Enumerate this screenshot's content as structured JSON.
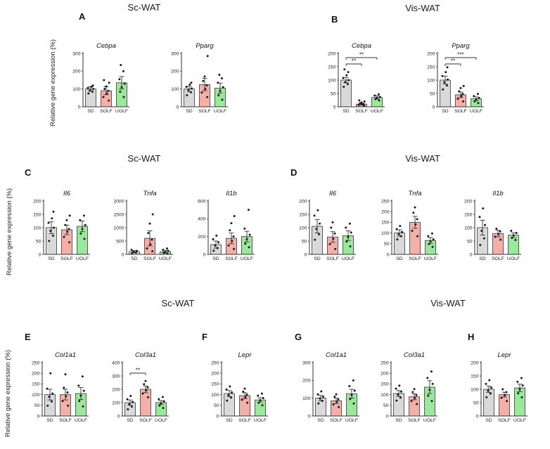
{
  "figure": {
    "y_axis_label": "Relative gene expression (%)",
    "section_titles": [
      {
        "id": "row0-sc",
        "text": "Sc-WAT"
      },
      {
        "id": "row0-vis",
        "text": "Vis-WAT"
      },
      {
        "id": "row1-sc",
        "text": "Sc-WAT"
      },
      {
        "id": "row1-vis",
        "text": "Vis-WAT"
      },
      {
        "id": "row2-sc",
        "text": "Sc-WAT"
      },
      {
        "id": "row2-vis",
        "text": "Vis-WAT"
      }
    ],
    "panel_letters": [
      "A",
      "B",
      "C",
      "D",
      "E",
      "F",
      "G",
      "H"
    ]
  },
  "style": {
    "bar_colors": [
      "#d9d9d9",
      "#f5afa9",
      "#9be79b"
    ],
    "bar_border": "#4a4a4a",
    "axis_color": "#333333",
    "dot_color": "#1a1a1a",
    "text_color": "#222222"
  },
  "chart_data": [
    {
      "id": "A_Cebpa",
      "panel": "A",
      "tissue": "Sc-WAT",
      "type": "bar",
      "title": "Cebpa",
      "categories": [
        "SD",
        "SOLF",
        "UOLF"
      ],
      "values": [
        100,
        90,
        135
      ],
      "errors": [
        12,
        22,
        35
      ],
      "points": [
        [
          75,
          85,
          92,
          100,
          106,
          112,
          120
        ],
        [
          35,
          55,
          75,
          90,
          100,
          115,
          135,
          150
        ],
        [
          55,
          85,
          110,
          130,
          155,
          200,
          235
        ]
      ],
      "ylim": [
        0,
        300
      ],
      "yticks": [
        0,
        100,
        200,
        300
      ],
      "sig": []
    },
    {
      "id": "A_Pparg",
      "panel": "A",
      "tissue": "Sc-WAT",
      "type": "bar",
      "title": "Pparg",
      "categories": [
        "SD",
        "SOLF",
        "UOLF"
      ],
      "values": [
        100,
        125,
        105
      ],
      "errors": [
        15,
        35,
        28
      ],
      "points": [
        [
          65,
          82,
          95,
          103,
          112,
          125,
          135
        ],
        [
          55,
          80,
          100,
          120,
          145,
          170,
          285
        ],
        [
          40,
          65,
          90,
          110,
          135,
          160,
          180
        ]
      ],
      "ylim": [
        0,
        300
      ],
      "yticks": [
        0,
        100,
        200,
        300
      ],
      "sig": []
    },
    {
      "id": "B_Cebpa",
      "panel": "B",
      "tissue": "Vis-WAT",
      "type": "bar",
      "title": "Cebpa",
      "categories": [
        "SD",
        "SOLF",
        "UOLF"
      ],
      "values": [
        100,
        10,
        35
      ],
      "errors": [
        10,
        3,
        6
      ],
      "points": [
        [
          75,
          85,
          92,
          100,
          108,
          118,
          130,
          140
        ],
        [
          4,
          7,
          9,
          11,
          13,
          16,
          20,
          24
        ],
        [
          24,
          29,
          33,
          37,
          42,
          47
        ]
      ],
      "ylim": [
        0,
        200
      ],
      "yticks": [
        0,
        50,
        100,
        150,
        200
      ],
      "sig": [
        {
          "a": 0,
          "b": 1,
          "label": "**",
          "level": 0
        },
        {
          "a": 0,
          "b": 2,
          "label": "**",
          "level": 1
        }
      ]
    },
    {
      "id": "B_Pparg",
      "panel": "B",
      "tissue": "Vis-WAT",
      "type": "bar",
      "title": "Pparg",
      "categories": [
        "SD",
        "SOLF",
        "UOLF"
      ],
      "values": [
        100,
        45,
        30
      ],
      "errors": [
        15,
        10,
        7
      ],
      "points": [
        [
          65,
          80,
          92,
          102,
          115,
          130,
          148
        ],
        [
          20,
          30,
          40,
          48,
          58,
          70,
          78
        ],
        [
          14,
          20,
          27,
          33,
          40,
          48
        ]
      ],
      "ylim": [
        0,
        200
      ],
      "yticks": [
        0,
        50,
        100,
        150,
        200
      ],
      "sig": [
        {
          "a": 0,
          "b": 1,
          "label": "**",
          "level": 0
        },
        {
          "a": 0,
          "b": 2,
          "label": "***",
          "level": 1
        }
      ]
    },
    {
      "id": "C_Il6",
      "panel": "C",
      "tissue": "Sc-WAT",
      "type": "bar",
      "title": "Il6",
      "categories": [
        "SD",
        "SOLF",
        "UOLF"
      ],
      "values": [
        100,
        92,
        105
      ],
      "errors": [
        22,
        18,
        20
      ],
      "points": [
        [
          50,
          70,
          88,
          100,
          118,
          135,
          160
        ],
        [
          45,
          65,
          85,
          95,
          110,
          128,
          145
        ],
        [
          58,
          78,
          95,
          110,
          128,
          145
        ]
      ],
      "ylim": [
        0,
        200
      ],
      "yticks": [
        0,
        50,
        100,
        150,
        200
      ],
      "sig": []
    },
    {
      "id": "C_Tnfa",
      "panel": "C",
      "tissue": "Sc-WAT",
      "type": "bar",
      "title": "Tnfa",
      "categories": [
        "SD",
        "SOLF",
        "UOLF"
      ],
      "values": [
        100,
        600,
        100
      ],
      "errors": [
        40,
        280,
        50
      ],
      "points": [
        [
          40,
          70,
          100,
          130,
          170
        ],
        [
          120,
          220,
          380,
          550,
          800,
          1150,
          1500
        ],
        [
          30,
          60,
          90,
          130,
          170,
          220
        ]
      ],
      "ylim": [
        0,
        2000
      ],
      "yticks": [
        0,
        500,
        1000,
        1500,
        2000
      ],
      "sig": []
    },
    {
      "id": "C_Il1b",
      "panel": "C",
      "tissue": "Sc-WAT",
      "type": "bar",
      "title": "Il1b",
      "categories": [
        "SD",
        "SOLF",
        "UOLF"
      ],
      "values": [
        110,
        180,
        200
      ],
      "errors": [
        40,
        60,
        60
      ],
      "points": [
        [
          40,
          70,
          100,
          135,
          170,
          210
        ],
        [
          60,
          100,
          150,
          200,
          270,
          350,
          430
        ],
        [
          80,
          120,
          170,
          220,
          290,
          500
        ]
      ],
      "ylim": [
        0,
        600
      ],
      "yticks": [
        0,
        200,
        400,
        600
      ],
      "sig": []
    },
    {
      "id": "D_Il6",
      "panel": "D",
      "tissue": "Vis-WAT",
      "type": "bar",
      "title": "Il6",
      "categories": [
        "SD",
        "SOLF",
        "UOLF"
      ],
      "values": [
        105,
        65,
        70
      ],
      "errors": [
        25,
        20,
        18
      ],
      "points": [
        [
          55,
          75,
          95,
          115,
          145,
          165
        ],
        [
          20,
          38,
          58,
          78,
          100,
          120
        ],
        [
          30,
          48,
          65,
          82,
          100,
          115
        ]
      ],
      "ylim": [
        0,
        200
      ],
      "yticks": [
        0,
        50,
        100,
        150,
        200
      ],
      "sig": []
    },
    {
      "id": "D_Tnfa",
      "panel": "D",
      "tissue": "Vis-WAT",
      "type": "bar",
      "title": "Tnfa",
      "categories": [
        "SD",
        "SOLF",
        "UOLF"
      ],
      "values": [
        100,
        150,
        65
      ],
      "errors": [
        15,
        28,
        14
      ],
      "points": [
        [
          70,
          85,
          95,
          105,
          118,
          133
        ],
        [
          85,
          110,
          140,
          165,
          195,
          220
        ],
        [
          35,
          48,
          60,
          70,
          85,
          98
        ]
      ],
      "ylim": [
        0,
        250
      ],
      "yticks": [
        0,
        50,
        100,
        150,
        200,
        250
      ],
      "sig": []
    },
    {
      "id": "D_Il1b",
      "panel": "D",
      "tissue": "Vis-WAT",
      "type": "bar",
      "title": "Il1b",
      "categories": [
        "SD",
        "SOLF",
        "UOLF"
      ],
      "values": [
        100,
        78,
        72
      ],
      "errors": [
        28,
        12,
        9
      ],
      "points": [
        [
          35,
          60,
          88,
          110,
          140,
          172
        ],
        [
          55,
          66,
          76,
          86,
          96
        ],
        [
          54,
          62,
          71,
          80,
          88
        ]
      ],
      "ylim": [
        0,
        200
      ],
      "yticks": [
        0,
        50,
        100,
        150,
        200
      ],
      "sig": []
    },
    {
      "id": "E_Col1a1",
      "panel": "E",
      "tissue": "Sc-WAT",
      "type": "bar",
      "title": "Col1a1",
      "categories": [
        "SD",
        "SOLF",
        "UOLF"
      ],
      "values": [
        100,
        100,
        105
      ],
      "errors": [
        25,
        25,
        28
      ],
      "points": [
        [
          48,
          68,
          90,
          105,
          128,
          200
        ],
        [
          48,
          70,
          92,
          110,
          132,
          195
        ],
        [
          45,
          70,
          95,
          118,
          142,
          185
        ]
      ],
      "ylim": [
        0,
        250
      ],
      "yticks": [
        0,
        50,
        100,
        150,
        200,
        250
      ],
      "sig": []
    },
    {
      "id": "E_Col3a1",
      "panel": "E",
      "tissue": "Sc-WAT",
      "type": "bar",
      "title": "Col3a1",
      "categories": [
        "SD",
        "SOLF",
        "UOLF"
      ],
      "values": [
        100,
        200,
        100
      ],
      "errors": [
        20,
        25,
        15
      ],
      "points": [
        [
          50,
          70,
          88,
          105,
          125,
          150
        ],
        [
          140,
          168,
          192,
          214,
          238,
          262
        ],
        [
          60,
          78,
          95,
          110,
          126,
          142
        ]
      ],
      "ylim": [
        0,
        400
      ],
      "yticks": [
        0,
        100,
        200,
        300,
        400
      ],
      "sig": [
        {
          "a": 0,
          "b": 1,
          "label": "**",
          "level": 0
        }
      ]
    },
    {
      "id": "F_Lepr",
      "panel": "F",
      "tissue": "Sc-WAT",
      "type": "bar",
      "title": "Lepr",
      "categories": [
        "SD",
        "SOLF",
        "UOLF"
      ],
      "values": [
        105,
        95,
        75
      ],
      "errors": [
        14,
        14,
        10
      ],
      "points": [
        [
          72,
          86,
          98,
          110,
          124,
          138
        ],
        [
          62,
          76,
          88,
          100,
          114,
          128
        ],
        [
          50,
          62,
          73,
          84,
          95,
          105
        ]
      ],
      "ylim": [
        0,
        250
      ],
      "yticks": [
        0,
        50,
        100,
        150,
        200,
        250
      ],
      "sig": []
    },
    {
      "id": "G_Col1a1",
      "panel": "G",
      "tissue": "Vis-WAT",
      "type": "bar",
      "title": "Col1a1",
      "categories": [
        "SD",
        "SOLF",
        "UOLF"
      ],
      "values": [
        100,
        85,
        125
      ],
      "errors": [
        15,
        15,
        25
      ],
      "points": [
        [
          70,
          85,
          98,
          108,
          122,
          138
        ],
        [
          50,
          65,
          80,
          93,
          108,
          122
        ],
        [
          70,
          95,
          118,
          142,
          168,
          200
        ]
      ],
      "ylim": [
        0,
        300
      ],
      "yticks": [
        0,
        100,
        200,
        300
      ],
      "sig": []
    },
    {
      "id": "G_Col3a1",
      "panel": "G",
      "tissue": "Vis-WAT",
      "type": "bar",
      "title": "Col3a1",
      "categories": [
        "SD",
        "SOLF",
        "UOLF"
      ],
      "values": [
        105,
        90,
        135
      ],
      "errors": [
        14,
        14,
        30
      ],
      "points": [
        [
          72,
          86,
          100,
          114,
          128,
          142
        ],
        [
          56,
          70,
          84,
          98,
          112,
          126
        ],
        [
          70,
          95,
          122,
          150,
          178,
          208
        ]
      ],
      "ylim": [
        0,
        250
      ],
      "yticks": [
        0,
        50,
        100,
        150,
        200,
        250
      ],
      "sig": []
    },
    {
      "id": "H_Lepr",
      "panel": "H",
      "tissue": "Vis-WAT",
      "type": "bar",
      "title": "Lepr",
      "categories": [
        "SD",
        "SOLF",
        "UOLF"
      ],
      "values": [
        100,
        80,
        105
      ],
      "errors": [
        12,
        9,
        14
      ],
      "points": [
        [
          70,
          84,
          95,
          106,
          120,
          134
        ],
        [
          56,
          68,
          78,
          89,
          100
        ],
        [
          70,
          85,
          100,
          114,
          128,
          142
        ]
      ],
      "ylim": [
        0,
        200
      ],
      "yticks": [
        0,
        50,
        100,
        150,
        200
      ],
      "sig": []
    }
  ]
}
